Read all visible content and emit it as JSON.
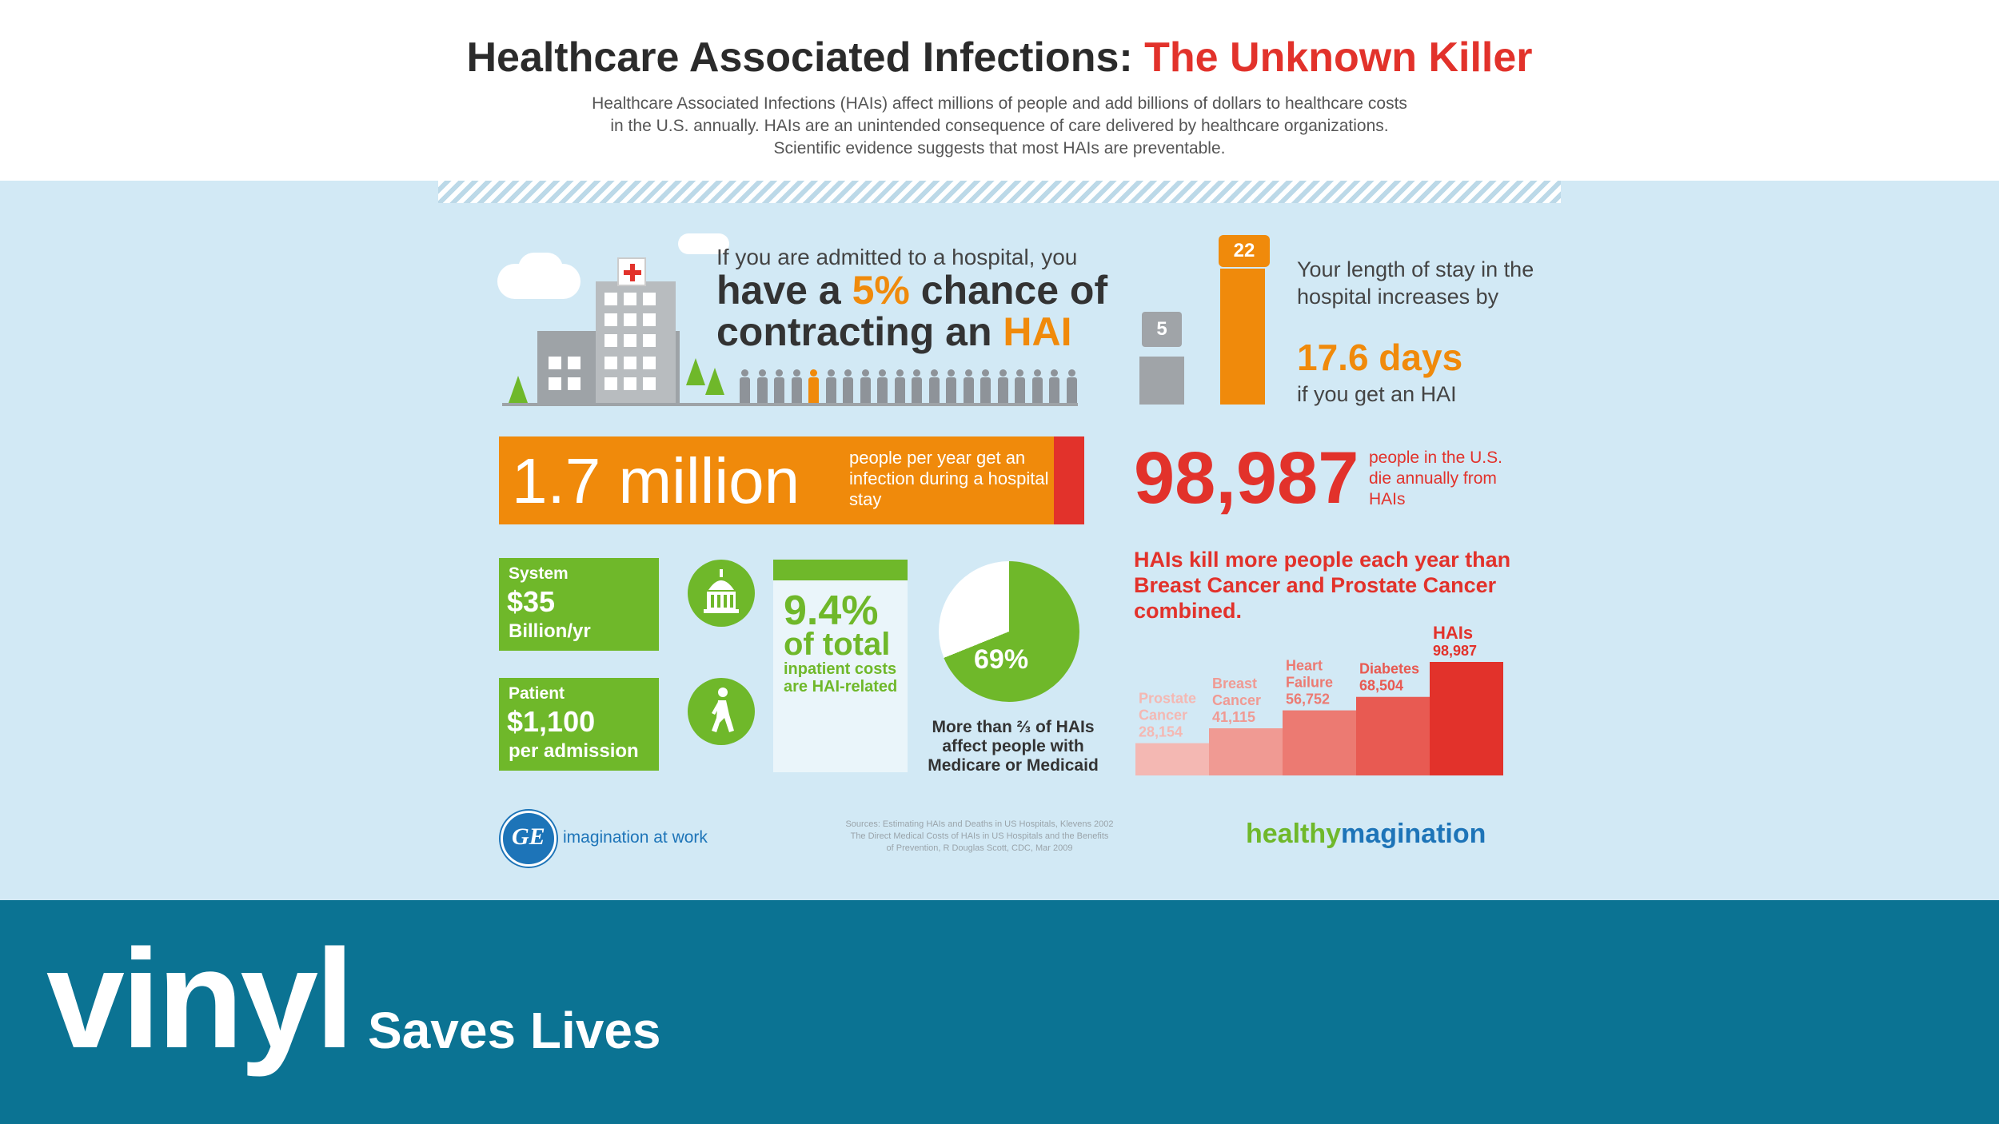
{
  "header": {
    "title_main": "Healthcare Associated Infections: ",
    "title_highlight": "The Unknown Killer",
    "intro_line1": "Healthcare Associated Infections (HAIs) affect millions of people and add billions of dollars to healthcare costs",
    "intro_line2": "in the U.S. annually. HAIs are an unintended consequence of care delivered by healthcare organizations.",
    "intro_line3": "Scientific evidence suggests that most HAIs are preventable."
  },
  "chance": {
    "line1": "If you are admitted to a hospital, you",
    "line2_pre": "have a ",
    "line2_pct": "5%",
    "line2_post": " chance of",
    "line3_pre": "contracting an ",
    "line3_hai": "HAI",
    "people_total": 20,
    "people_highlighted": 1
  },
  "stay": {
    "before_days": "5",
    "after_days": "22",
    "text": "Your length of stay in the hospital increases by",
    "days": "17.6 days",
    "suffix": "if you get an HAI"
  },
  "infections": {
    "number": "1.7 million",
    "text": "people per year get an infection during a hospital stay"
  },
  "deaths": {
    "number": "98,987",
    "text": "people in the U.S. die annually from HAIs"
  },
  "costs": {
    "system_label": "System",
    "system_amount": "$35",
    "system_unit": "Billion/yr",
    "patient_label": "Patient",
    "patient_amount": "$1,100",
    "patient_unit": "per admission",
    "icons": [
      "capitol-icon",
      "walking-person-icon"
    ]
  },
  "inpatient": {
    "pct": "9.4%",
    "of_total": "of total",
    "text": "inpatient costs are HAI-related"
  },
  "medicare": {
    "pct_label": "69%",
    "pct_value": 69,
    "text": "More than ⅔ of HAIs affect people with Medicare or Medicaid"
  },
  "comparison": {
    "text": "HAIs kill more people each year than Breast Cancer and Prostate Cancer combined."
  },
  "chart_data": {
    "type": "bar",
    "categories": [
      "Prostate Cancer",
      "Breast Cancer",
      "Heart Failure",
      "Diabetes",
      "HAIs"
    ],
    "category_lines": [
      [
        "Prostate",
        "Cancer"
      ],
      [
        "Breast",
        "Cancer"
      ],
      [
        "Heart",
        "Failure"
      ],
      [
        "Diabetes"
      ],
      [
        "HAIs"
      ]
    ],
    "values": [
      28154,
      41115,
      56752,
      68504,
      98987
    ],
    "value_labels": [
      "28,154",
      "41,115",
      "56,752",
      "68,504",
      "98,987"
    ],
    "colors": [
      "#f4b8b3",
      "#f09a93",
      "#ec7a72",
      "#e85a52",
      "#e2322b"
    ]
  },
  "footer": {
    "ge_mark": "GE",
    "ge_tagline": "imagination at work",
    "sources_line1": "Sources: Estimating HAIs and Deaths in US Hospitals, Klevens 2002",
    "sources_line2": "The Direct Medical Costs of HAIs in US Hospitals and the Benefits",
    "sources_line3": "of Prevention, R Douglas Scott, CDC, Mar 2009",
    "healthy": "healthy",
    "magination": "magination"
  },
  "banner": {
    "brand": "vinyl",
    "tagline": "Saves Lives",
    "color": "#0b7393"
  }
}
